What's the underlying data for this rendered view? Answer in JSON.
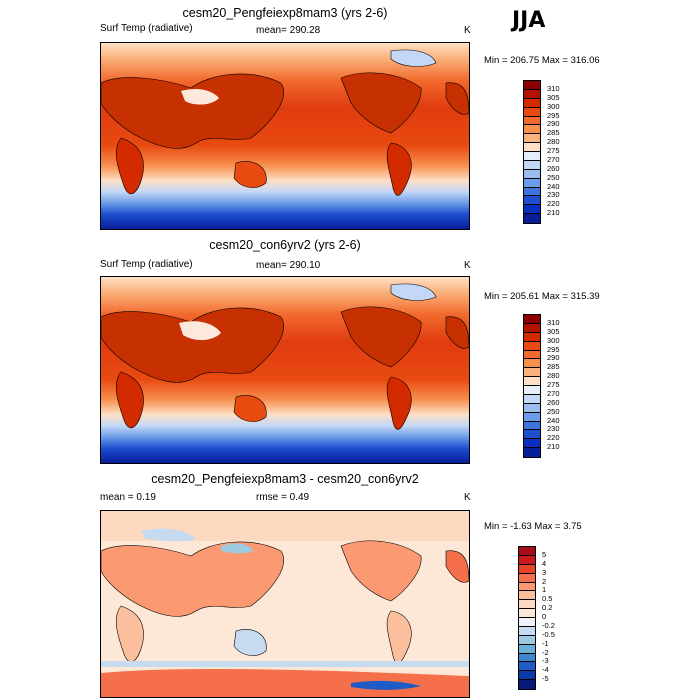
{
  "season": "JJA",
  "panels": [
    {
      "title": "cesm20_Pengfeiexp8mam3 (yrs 2-6)",
      "left_label": "Surf Temp (radiative)",
      "center_label": "mean= 290.28",
      "right_label": "K",
      "minmax": "Min = 206.75 Max = 316.06",
      "colorbar": {
        "labels": [
          "310",
          "305",
          "300",
          "295",
          "290",
          "285",
          "280",
          "275",
          "270",
          "260",
          "250",
          "240",
          "230",
          "220",
          "210"
        ],
        "colors": [
          "#8b0000",
          "#b31200",
          "#d42a00",
          "#e84a10",
          "#f26a2e",
          "#f7904f",
          "#fbb27d",
          "#fde0c5",
          "#e6eefb",
          "#c3d7f6",
          "#9abdf0",
          "#6d9de8",
          "#3f74df",
          "#1e4fd1",
          "#0a2fc0",
          "#061e99"
        ]
      }
    },
    {
      "title": "cesm20_con6yrv2 (yrs 2-6)",
      "left_label": "Surf Temp (radiative)",
      "center_label": "mean= 290.10",
      "right_label": "K",
      "minmax": "Min = 205.61 Max = 315.39",
      "colorbar": {
        "labels": [
          "310",
          "305",
          "300",
          "295",
          "290",
          "285",
          "280",
          "275",
          "270",
          "260",
          "250",
          "240",
          "230",
          "220",
          "210"
        ],
        "colors": [
          "#8b0000",
          "#b31200",
          "#d42a00",
          "#e84a10",
          "#f26a2e",
          "#f7904f",
          "#fbb27d",
          "#fde0c5",
          "#e6eefb",
          "#c3d7f6",
          "#9abdf0",
          "#6d9de8",
          "#3f74df",
          "#1e4fd1",
          "#0a2fc0",
          "#061e99"
        ]
      }
    },
    {
      "title": "cesm20_Pengfeiexp8mam3 - cesm20_con6yrv2",
      "left_label": "mean =   0.19",
      "center_label": "rmse =   0.49",
      "right_label": "K",
      "minmax": "Min =  -1.63 Max =   3.75",
      "colorbar": {
        "labels": [
          "5",
          "4",
          "3",
          "2",
          "1",
          "0.5",
          "0.2",
          "0",
          "-0.2",
          "-0.5",
          "-1",
          "-2",
          "-3",
          "-4",
          "-5"
        ],
        "colors": [
          "#a50f15",
          "#cb181d",
          "#e8432b",
          "#f5704a",
          "#fb9a72",
          "#fcbf9d",
          "#fdd9c2",
          "#fde8d8",
          "#eef3fb",
          "#c6dbef",
          "#9ecae1",
          "#6baed6",
          "#3f86cf",
          "#1e5bc6",
          "#0b3aa8",
          "#061a7a"
        ]
      }
    }
  ]
}
